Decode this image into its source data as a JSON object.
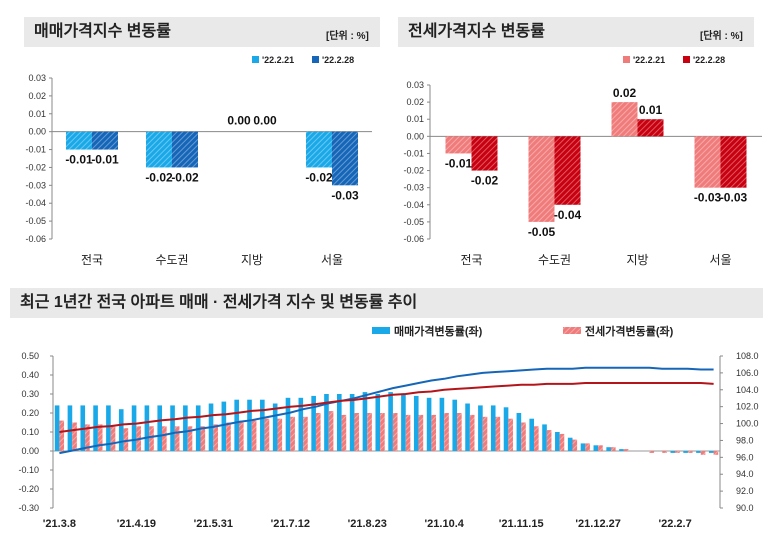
{
  "colors": {
    "bar_light_blue": "#1aa9e8",
    "bar_dark_blue": "#1566b8",
    "bar_light_red": "#f07b7b",
    "bar_dark_red": "#c8000f",
    "line_blue": "#1566b8",
    "line_red": "#b3151b"
  },
  "panels": {
    "sale": {
      "title": "매매가격지수 변동률",
      "unit": "[단위 : %]"
    },
    "jeonse": {
      "title": "전세가격지수 변동률",
      "unit": "[단위 : %]"
    },
    "trend": {
      "title": "최근 1년간 전국 아파트 매매 · 전세가격 지수 및 변동률 추이"
    }
  },
  "chart_data": [
    {
      "type": "bar",
      "categories": [
        "전국",
        "수도권",
        "지방",
        "서울"
      ],
      "series": [
        {
          "name": "'22.2.21",
          "values": [
            -0.01,
            -0.02,
            0.0,
            -0.02
          ],
          "labels": [
            "-0.01",
            "-0.02",
            "0.00",
            "-0.02"
          ]
        },
        {
          "name": "'22.2.28",
          "values": [
            -0.01,
            -0.02,
            0.0,
            -0.03
          ],
          "labels": [
            "-0.01",
            "-0.02",
            "0.00",
            "-0.03"
          ]
        }
      ],
      "ylim": [
        -0.06,
        0.03
      ],
      "yticks": [
        "0.03",
        "0.02",
        "0.01",
        "0.00",
        "-0.01",
        "-0.02",
        "-0.03",
        "-0.04",
        "-0.05",
        "-0.06"
      ],
      "legend": "top-right"
    },
    {
      "type": "bar",
      "categories": [
        "전국",
        "수도권",
        "지방",
        "서울"
      ],
      "series": [
        {
          "name": "'22.2.21",
          "values": [
            -0.01,
            -0.05,
            0.02,
            -0.03
          ],
          "labels": [
            "-0.01",
            "-0.05",
            "0.02",
            "-0.03"
          ]
        },
        {
          "name": "'22.2.28",
          "values": [
            -0.02,
            -0.04,
            0.01,
            -0.03
          ],
          "labels": [
            "-0.02",
            "-0.04",
            "0.01",
            "-0.03"
          ]
        }
      ],
      "ylim": [
        -0.06,
        0.03
      ],
      "yticks": [
        "0.03",
        "0.02",
        "0.01",
        "0.00",
        "-0.01",
        "-0.02",
        "-0.03",
        "-0.04",
        "-0.05",
        "-0.06"
      ],
      "legend": "top-right"
    },
    {
      "type": "bar",
      "x_ticks": [
        "'21.3.8",
        "'21.4.19",
        "'21.5.31",
        "'21.7.12",
        "'21.8.23",
        "'21.10.4",
        "'21.11.15",
        "'21.12.27",
        "'22.2.7"
      ],
      "series": [
        {
          "name": "매매가격변동률(좌)",
          "values": [
            0.24,
            0.24,
            0.24,
            0.24,
            0.24,
            0.22,
            0.24,
            0.24,
            0.24,
            0.24,
            0.24,
            0.24,
            0.25,
            0.26,
            0.27,
            0.27,
            0.27,
            0.25,
            0.28,
            0.28,
            0.29,
            0.3,
            0.3,
            0.3,
            0.31,
            0.3,
            0.31,
            0.3,
            0.29,
            0.28,
            0.28,
            0.27,
            0.25,
            0.24,
            0.24,
            0.23,
            0.2,
            0.17,
            0.14,
            0.1,
            0.07,
            0.04,
            0.03,
            0.02,
            0.01,
            0.0,
            0.0,
            0.0,
            -0.01,
            -0.01,
            -0.01,
            -0.01
          ]
        },
        {
          "name": "전세가격변동률(좌)",
          "values": [
            0.16,
            0.15,
            0.14,
            0.14,
            0.13,
            0.12,
            0.13,
            0.13,
            0.13,
            0.13,
            0.13,
            0.13,
            0.14,
            0.15,
            0.16,
            0.16,
            0.17,
            0.17,
            0.18,
            0.18,
            0.2,
            0.21,
            0.19,
            0.2,
            0.2,
            0.2,
            0.2,
            0.19,
            0.19,
            0.19,
            0.2,
            0.2,
            0.19,
            0.18,
            0.18,
            0.17,
            0.15,
            0.13,
            0.11,
            0.09,
            0.06,
            0.04,
            0.03,
            0.02,
            0.01,
            0.0,
            -0.01,
            -0.01,
            -0.01,
            -0.01,
            -0.02,
            -0.02
          ]
        }
      ],
      "lines": [
        {
          "values": [
            96.5,
            96.8,
            97.1,
            97.4,
            97.6,
            97.9,
            98.1,
            98.4,
            98.6,
            98.9,
            99.1,
            99.4,
            99.6,
            99.9,
            100.2,
            100.4,
            100.7,
            101.0,
            101.3,
            101.7,
            102.0,
            102.4,
            102.7,
            103.0,
            103.4,
            103.8,
            104.2,
            104.5,
            104.8,
            105.1,
            105.3,
            105.6,
            105.8,
            106.0,
            106.1,
            106.2,
            106.3,
            106.4,
            106.5,
            106.5,
            106.5,
            106.6,
            106.6,
            106.6,
            106.6,
            106.6,
            106.6,
            106.5,
            106.5,
            106.5,
            106.4,
            106.4
          ]
        },
        {
          "values": [
            99.0,
            99.2,
            99.4,
            99.6,
            99.7,
            99.9,
            100.0,
            100.2,
            100.4,
            100.5,
            100.7,
            100.8,
            101.0,
            101.1,
            101.3,
            101.5,
            101.6,
            101.8,
            102.0,
            102.1,
            102.3,
            102.5,
            102.7,
            102.8,
            103.0,
            103.2,
            103.4,
            103.5,
            103.7,
            103.8,
            104.0,
            104.1,
            104.2,
            104.3,
            104.4,
            104.5,
            104.6,
            104.6,
            104.7,
            104.7,
            104.7,
            104.8,
            104.8,
            104.8,
            104.8,
            104.8,
            104.8,
            104.8,
            104.8,
            104.8,
            104.8,
            104.7
          ]
        }
      ],
      "ylim": [
        -0.3,
        0.5
      ],
      "ylim_right": [
        90.0,
        108.0
      ],
      "yticks": [
        "0.50",
        "0.40",
        "0.30",
        "0.20",
        "0.10",
        "0.00",
        "-0.10",
        "-0.20",
        "-0.30"
      ],
      "yticks_right": [
        "108.0",
        "106.0",
        "104.0",
        "102.0",
        "100.0",
        "98.0",
        "96.0",
        "94.0",
        "92.0",
        "90.0"
      ],
      "legend": "top"
    }
  ]
}
